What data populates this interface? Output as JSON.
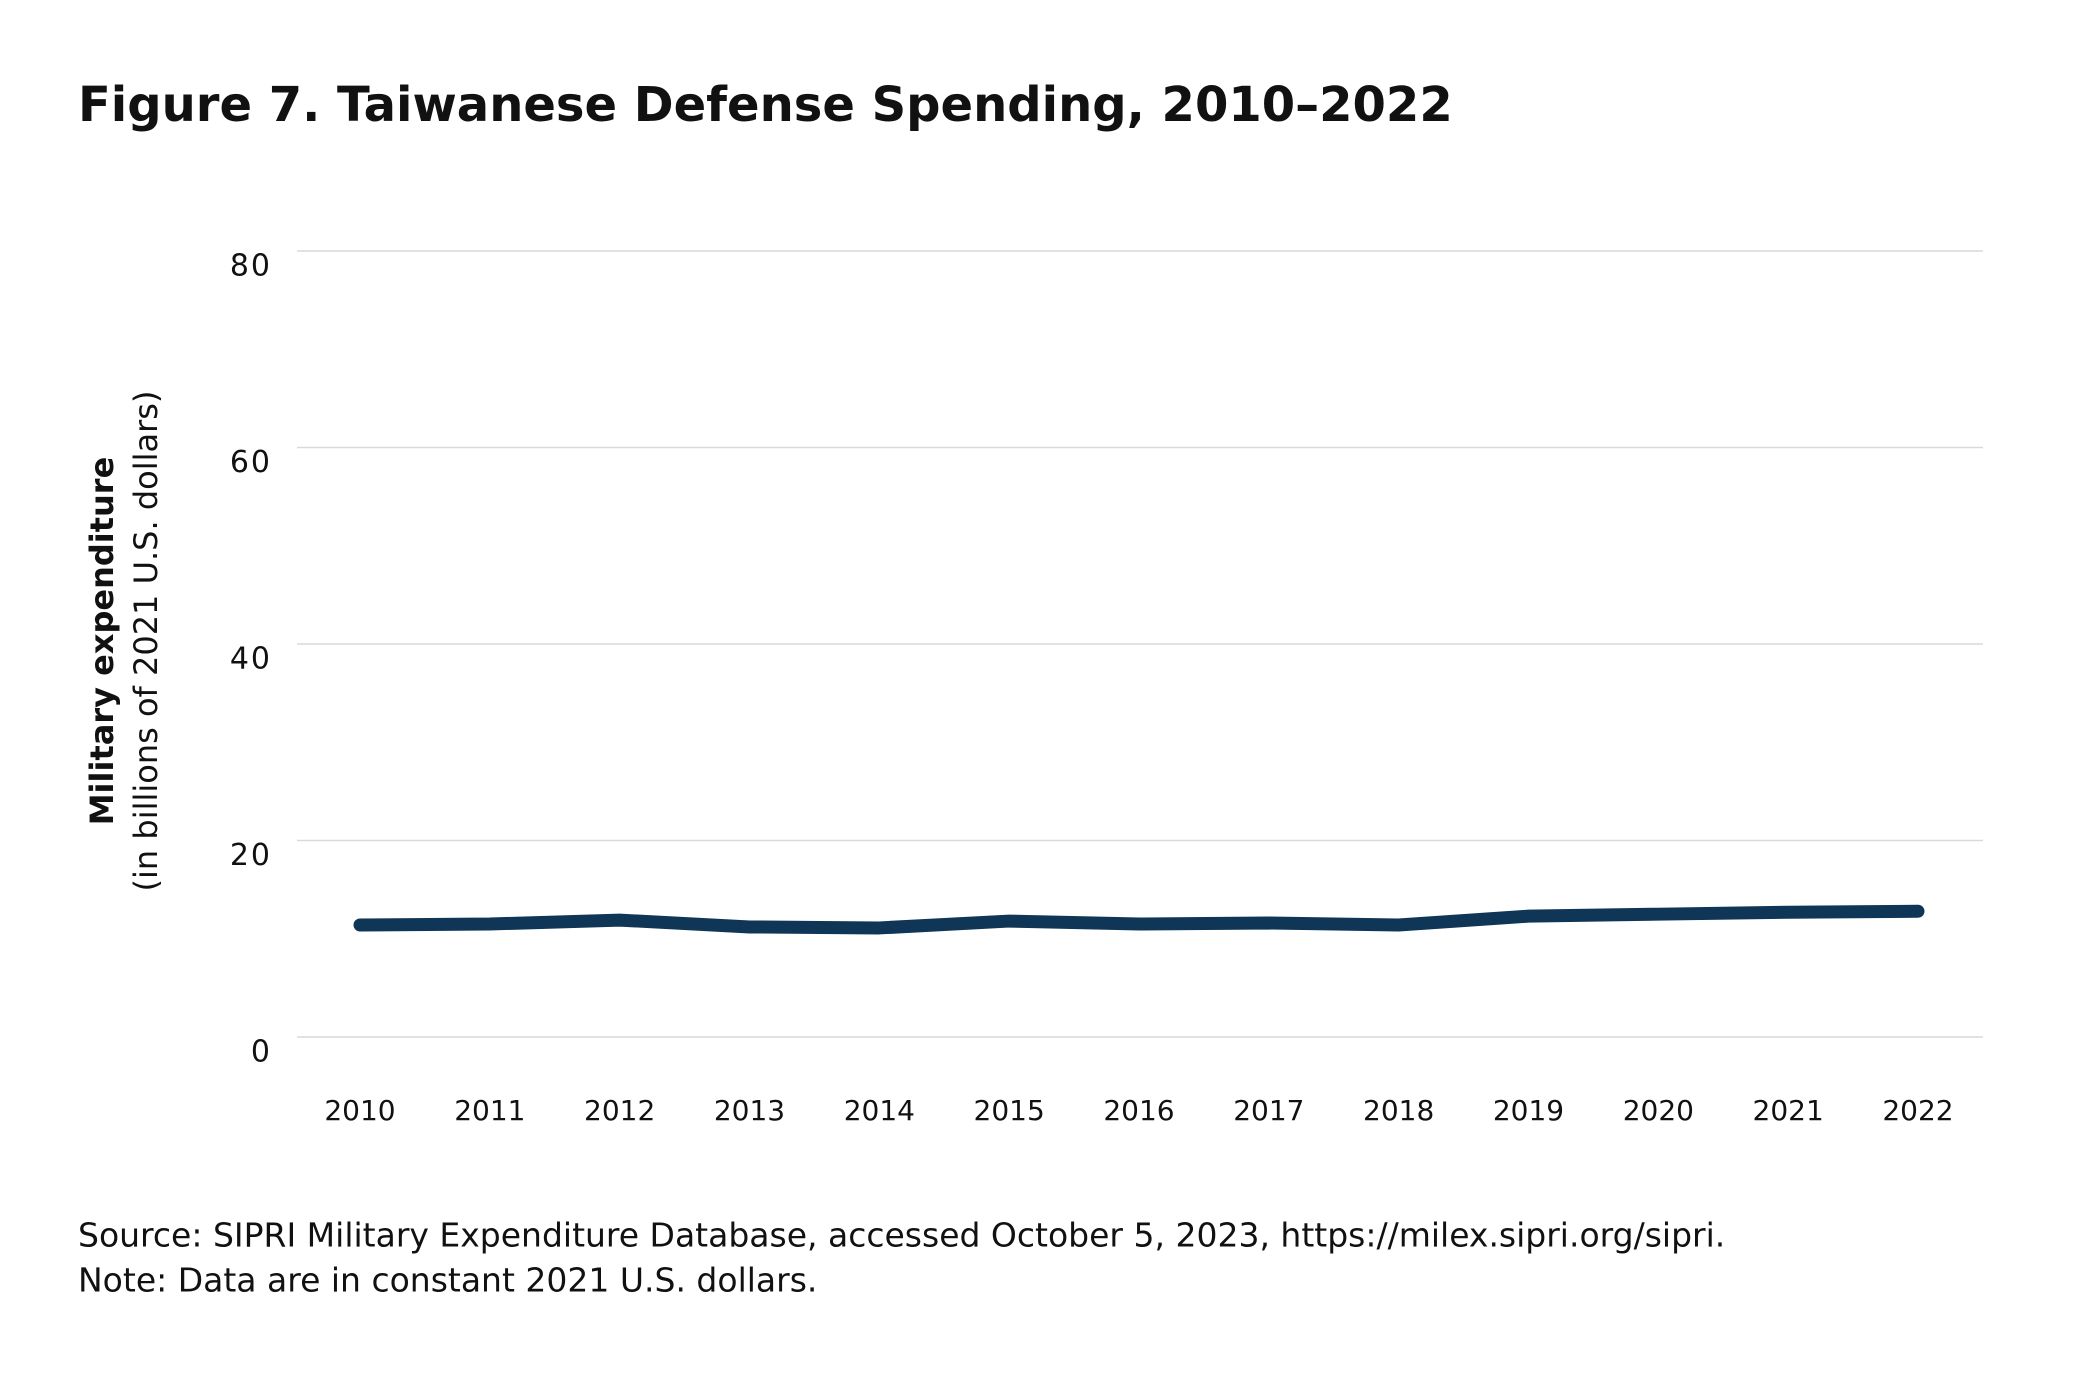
{
  "chart_data": {
    "type": "line",
    "title": "Figure 7. Taiwanese Defense Spending, 2010–2022",
    "y_label": "Military expenditure",
    "y_sublabel": "(in billions of 2021 U.S. dollars)",
    "categories": [
      "2010",
      "2011",
      "2012",
      "2013",
      "2014",
      "2015",
      "2016",
      "2017",
      "2018",
      "2019",
      "2020",
      "2021",
      "2022"
    ],
    "series": [
      {
        "name": "Military expenditure",
        "color": "#0f3557",
        "values": [
          11.4,
          11.5,
          11.9,
          11.2,
          11.1,
          11.8,
          11.5,
          11.6,
          11.4,
          12.3,
          12.5,
          12.7,
          12.8
        ]
      }
    ],
    "ylim": [
      0,
      80
    ],
    "yticks": [
      0,
      20,
      40,
      60,
      80
    ],
    "grid": true,
    "source": "Source: SIPRI Military Expenditure Database, accessed October 5, 2023, https://milex.sipri.org/sipri.",
    "note": "Note: Data are in constant 2021 U.S. dollars."
  }
}
